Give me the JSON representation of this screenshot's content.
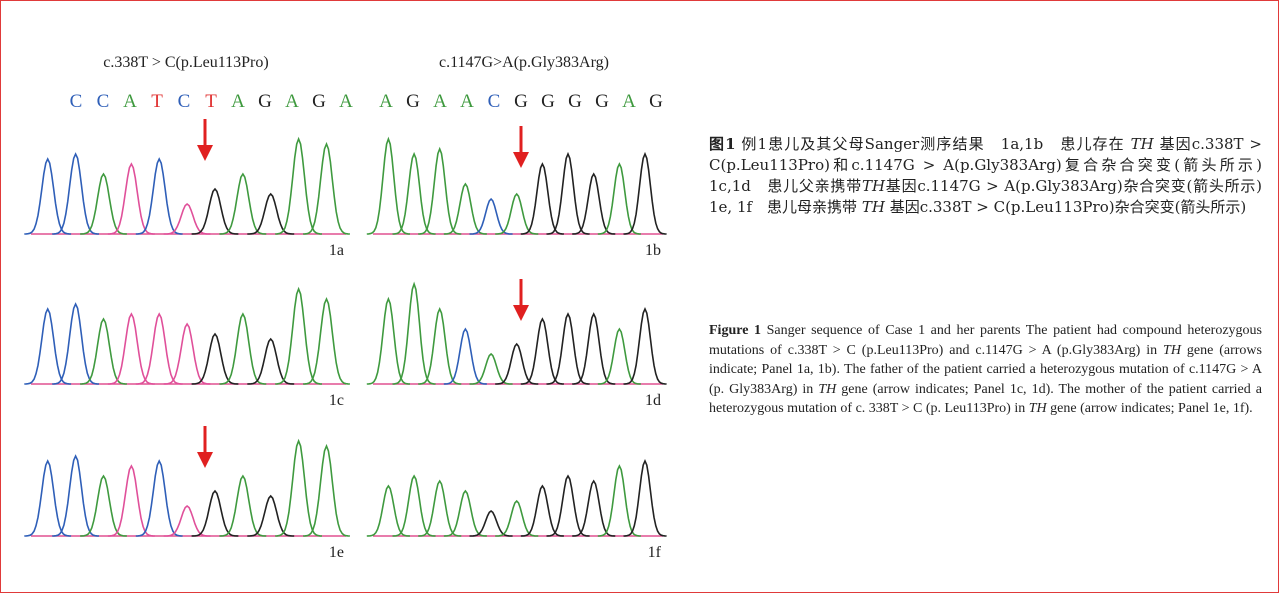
{
  "figure": {
    "panels_left": {
      "header": "c.338T > C(p.Leu113Pro)",
      "bases": [
        "C",
        "C",
        "A",
        "T",
        "C",
        "T",
        "A",
        "G",
        "A",
        "G",
        "A"
      ]
    },
    "panels_right": {
      "header": "c.1147G>A(p.Gly383Arg)",
      "bases": [
        "A",
        "G",
        "A",
        "A",
        "C",
        "G",
        "G",
        "G",
        "G",
        "A",
        "G"
      ]
    },
    "base_colors": {
      "A": "#3f9a3f",
      "C": "#2f5fb8",
      "G": "#222222",
      "T": "#e03030"
    },
    "panel_labels": [
      "1a",
      "1b",
      "1c",
      "1d",
      "1e",
      "1f"
    ]
  },
  "caption_zh": {
    "label": "图1",
    "parts": [
      {
        "text": " 例1患儿及其父母Sanger测序结果　1a,1b　患儿存在 "
      },
      {
        "text": "TH",
        "italic": true
      },
      {
        "text": " 基因c.338T > C(p.Leu113Pro)和c.1147G > A(p.Gly383Arg)复合杂合突变(箭头所示)　1c,1d　患儿父亲携带"
      },
      {
        "text": "TH",
        "italic": true
      },
      {
        "text": "基因c.1147G > A(p.Gly383Arg)杂合突变(箭头所示)　1e, 1f　患儿母亲携带 "
      },
      {
        "text": "TH",
        "italic": true
      },
      {
        "text": " 基因c.338T > C(p.Leu113Pro)杂合突变(箭头所示)"
      }
    ]
  },
  "caption_en": {
    "label": "Figure 1",
    "parts": [
      {
        "text": "  Sanger sequence of Case 1 and her parents The patient had compound heterozygous mutations of c.338T > C (p.Leu113Pro) and c.1147G > A (p.Gly383Arg) in "
      },
      {
        "text": "TH",
        "italic": true
      },
      {
        "text": " gene (arrows indicate; Panel 1a, 1b). The father of the patient carried a heterozygous mutation of c.1147G > A (p. Gly383Arg) in "
      },
      {
        "text": "TH",
        "italic": true
      },
      {
        "text": " gene (arrow indicates; Panel 1c, 1d). The mother of the patient carried a heterozygous mutation of c. 338T > C (p. Leu113Pro) in "
      },
      {
        "text": "TH",
        "italic": true
      },
      {
        "text": " gene (arrow indicates; Panel 1e, 1f)."
      }
    ]
  }
}
